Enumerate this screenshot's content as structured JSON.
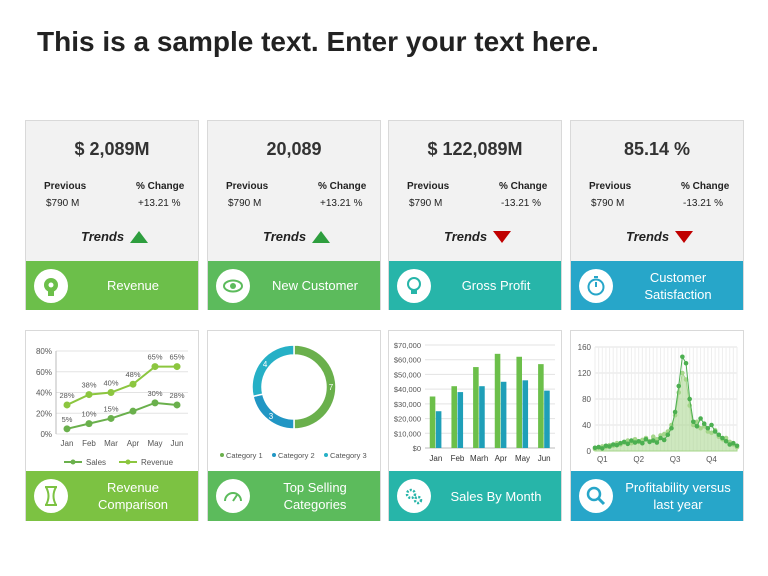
{
  "title": "This is a sample text. Enter your text here.",
  "kpis": [
    {
      "value": "$ 2,089M",
      "previous_label": "Previous",
      "previous": "$790 M",
      "change_label": "% Change",
      "change": "+13.21 %",
      "trends": "Trends",
      "direction": "up",
      "label": "Revenue",
      "band_color": "#6cbf4a"
    },
    {
      "value": "20,089",
      "previous_label": "Previous",
      "previous": "$790 M",
      "change_label": "% Change",
      "change": "+13.21 %",
      "trends": "Trends",
      "direction": "up",
      "label": "New Customer",
      "band_color": "#5cbb5c"
    },
    {
      "value": "$ 122,089M",
      "previous_label": "Previous",
      "previous": "$790 M",
      "change_label": "% Change",
      "change": "-13.21 %",
      "trends": "Trends",
      "direction": "down",
      "label": "Gross Profit",
      "band_color": "#27b5a9"
    },
    {
      "value": "85.14 %",
      "previous_label": "Previous",
      "previous": "$790 M",
      "change_label": "% Change",
      "change": "-13.21 %",
      "trends": "Trends",
      "direction": "down",
      "label": "Customer Satisfaction",
      "band_color": "#27a6c9"
    }
  ],
  "chart_data": [
    {
      "type": "line",
      "label": "Revenue Comparison",
      "band_color": "#7cc242",
      "categories": [
        "Jan",
        "Feb",
        "Mar",
        "Apr",
        "May",
        "Jun"
      ],
      "ylim": [
        0,
        80
      ],
      "yticks": [
        {
          "value": 0,
          "label": "0%"
        },
        {
          "value": 20,
          "label": "20%"
        },
        {
          "value": 40,
          "label": "40%"
        },
        {
          "value": 60,
          "label": "60%"
        },
        {
          "value": 80,
          "label": "80%"
        }
      ],
      "series": [
        {
          "name": "Sales",
          "color": "#6ab04c",
          "values": [
            5,
            10,
            15,
            22,
            30,
            28
          ],
          "value_labels": [
            "5%",
            "10%",
            "15%",
            null,
            "30%",
            "28%"
          ]
        },
        {
          "name": "Revenue",
          "color": "#8cc63f",
          "values": [
            28,
            38,
            40,
            48,
            65,
            65
          ],
          "value_labels": [
            "28%",
            "38%",
            "40%",
            "48%",
            "65%",
            "65%"
          ]
        }
      ]
    },
    {
      "type": "pie",
      "label": "Top Selling Categories",
      "band_color": "#5cbb5c",
      "categories": [
        "Category 1",
        "Category 2",
        "Category 3"
      ],
      "values": [
        7,
        3,
        4
      ],
      "colors": [
        "#6ab04c",
        "#2196c4",
        "#26b0c6"
      ]
    },
    {
      "type": "bar",
      "label": "Sales By Month",
      "band_color": "#27b5a9",
      "categories": [
        "Jan",
        "Feb",
        "Marh",
        "Apr",
        "May",
        "Jun"
      ],
      "ylim": [
        0,
        70000
      ],
      "yticks": [
        {
          "value": 0,
          "label": "$0"
        },
        {
          "value": 10000,
          "label": "$10,000"
        },
        {
          "value": 20000,
          "label": "$20,000"
        },
        {
          "value": 30000,
          "label": "$30,000"
        },
        {
          "value": 40000,
          "label": "$40,000"
        },
        {
          "value": 50000,
          "label": "$50,000"
        },
        {
          "value": 60000,
          "label": "$60,000"
        },
        {
          "value": 70000,
          "label": "$70,000"
        }
      ],
      "series": [
        {
          "color": "#6cbf4a",
          "values": [
            35000,
            42000,
            55000,
            64000,
            62000,
            57000
          ]
        },
        {
          "color": "#1f9fb8",
          "values": [
            25000,
            38000,
            42000,
            45000,
            46000,
            39000
          ]
        }
      ]
    },
    {
      "type": "area",
      "label": "Profitability versus last year",
      "band_color": "#27a6c9",
      "categories": [
        null,
        null,
        "Q1",
        null,
        null,
        null,
        null,
        null,
        null,
        null,
        null,
        null,
        "Q2",
        null,
        null,
        null,
        null,
        null,
        null,
        null,
        null,
        null,
        "Q3",
        null,
        null,
        null,
        null,
        null,
        null,
        null,
        null,
        null,
        "Q4",
        null,
        null,
        null,
        null,
        null,
        null,
        null
      ],
      "ylim": [
        0,
        160
      ],
      "yticks": [
        0,
        40,
        80,
        120,
        160
      ],
      "grid": true,
      "series": [
        {
          "color": "#4caf50",
          "values": [
            5,
            6,
            4,
            8,
            7,
            10,
            9,
            12,
            14,
            11,
            16,
            13,
            15,
            12,
            18,
            14,
            16,
            13,
            20,
            17,
            25,
            35,
            60,
            100,
            145,
            135,
            80,
            45,
            38,
            50,
            42,
            35,
            40,
            30,
            25,
            20,
            15,
            10,
            12,
            8
          ]
        },
        {
          "color": "#a5d68a",
          "values": [
            3,
            5,
            7,
            6,
            9,
            8,
            12,
            10,
            13,
            16,
            12,
            18,
            14,
            17,
            20,
            15,
            22,
            18,
            24,
            26,
            30,
            40,
            55,
            90,
            120,
            110,
            70,
            40,
            45,
            35,
            38,
            30,
            28,
            32,
            22,
            18,
            20,
            14,
            10,
            6
          ]
        }
      ]
    }
  ]
}
